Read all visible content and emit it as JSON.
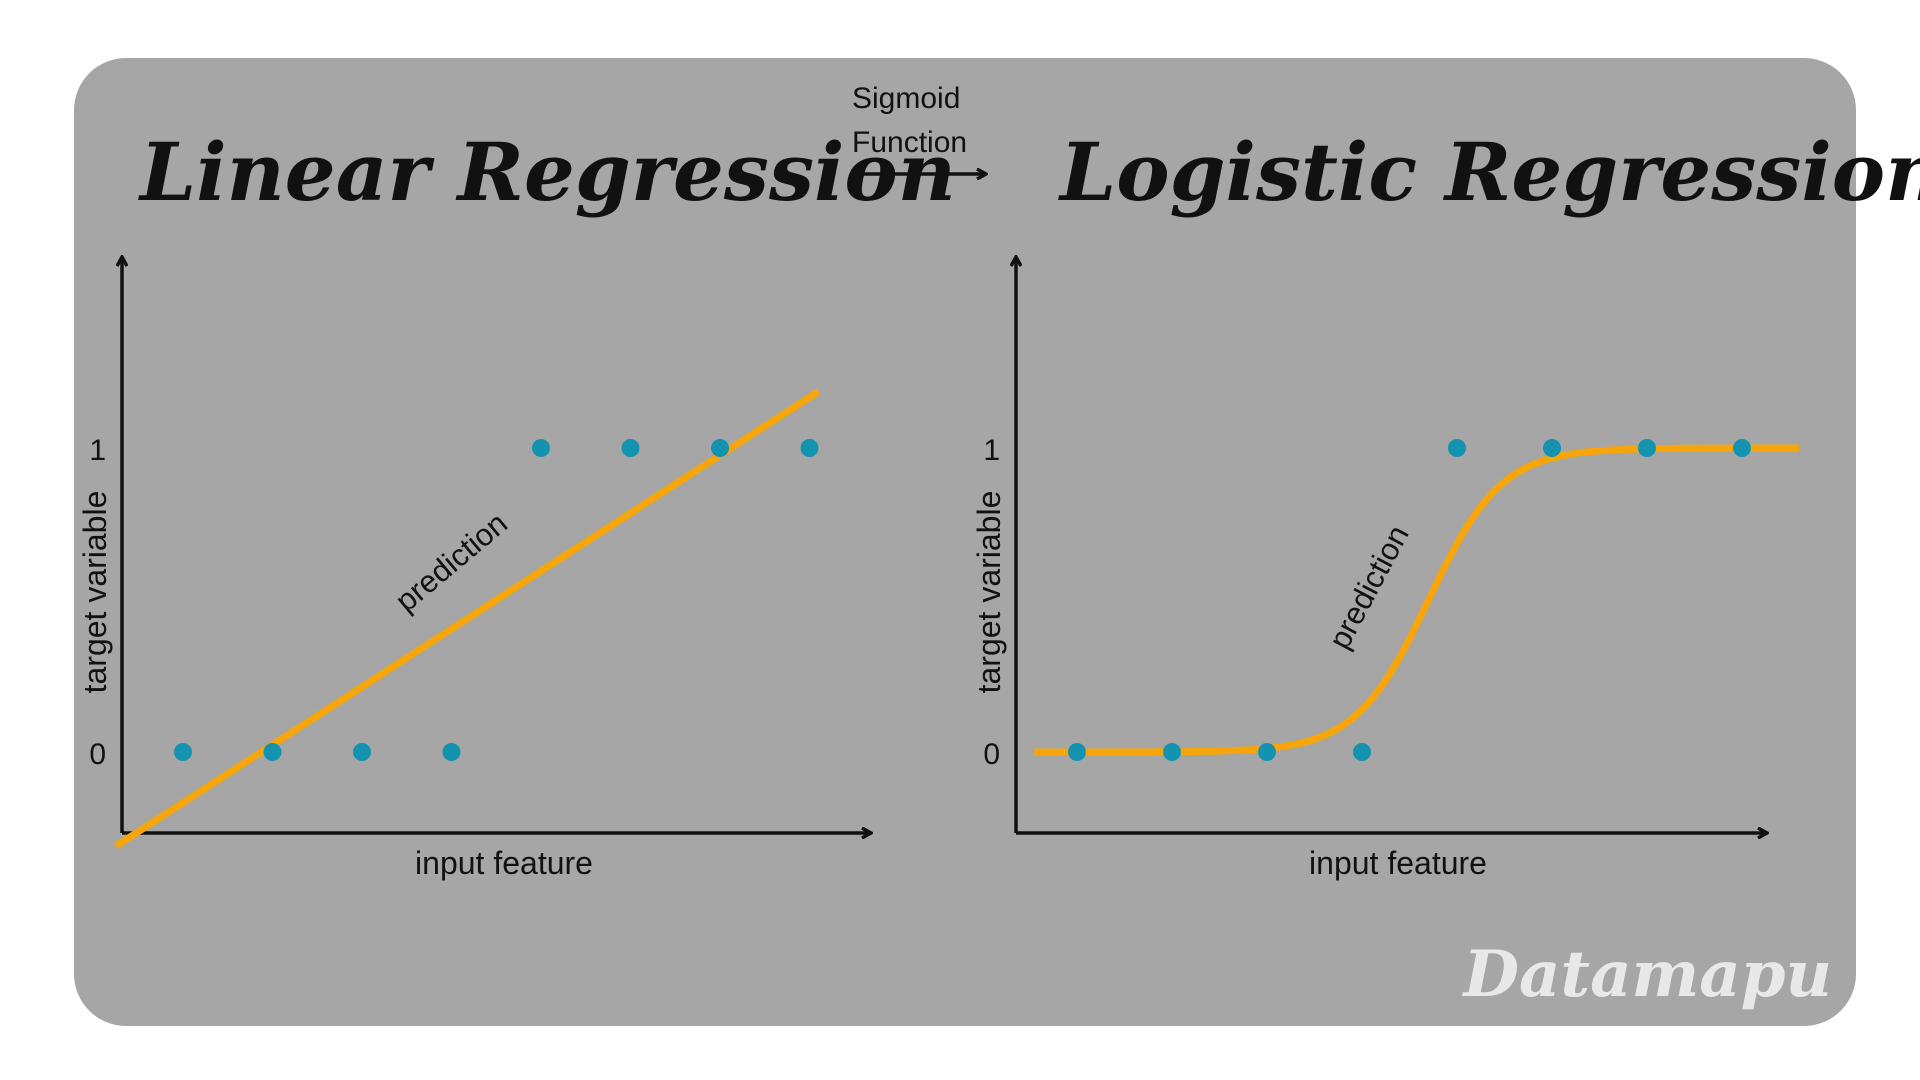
{
  "arrow": {
    "label_line1": "Sigmoid",
    "label_line2": "Function"
  },
  "brand": "Datamapu",
  "colors": {
    "panel": "#a6a6a6",
    "curve": "#f6a50b",
    "points": "#1493b0",
    "text": "#111111",
    "brand": "#e8e8e8"
  },
  "panels": [
    {
      "title": "Linear Regression",
      "xlabel": "input feature",
      "ylabel": "target variable",
      "prediction_label": "prediction",
      "y_ticks": [
        "0",
        "1"
      ],
      "model": "linear",
      "points": [
        {
          "x": 1,
          "y": 0
        },
        {
          "x": 2,
          "y": 0
        },
        {
          "x": 3,
          "y": 0
        },
        {
          "x": 4,
          "y": 0
        },
        {
          "x": 5,
          "y": 1
        },
        {
          "x": 6,
          "y": 1
        },
        {
          "x": 7,
          "y": 1
        },
        {
          "x": 8,
          "y": 1
        }
      ]
    },
    {
      "title": "Logistic Regression",
      "xlabel": "input feature",
      "ylabel": "target variable",
      "prediction_label": "prediction",
      "y_ticks": [
        "0",
        "1"
      ],
      "model": "sigmoid",
      "points": [
        {
          "x": 1,
          "y": 0
        },
        {
          "x": 2,
          "y": 0
        },
        {
          "x": 3,
          "y": 0
        },
        {
          "x": 4,
          "y": 0
        },
        {
          "x": 5,
          "y": 1
        },
        {
          "x": 6,
          "y": 1
        },
        {
          "x": 7,
          "y": 1
        },
        {
          "x": 8,
          "y": 1
        }
      ]
    }
  ]
}
